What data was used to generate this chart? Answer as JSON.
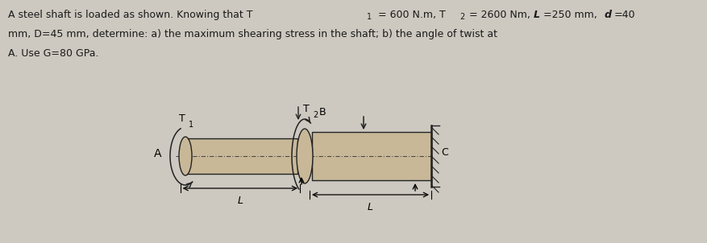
{
  "background_color": "#cdc9c0",
  "text_color": "#1a1a1a",
  "shaft_color": "#c8b898",
  "shaft_edge": "#222222",
  "centerline_color": "#444444",
  "fig_width": 8.77,
  "fig_height": 3.02,
  "dpi": 100,
  "line1_main": "A steel shaft is loaded as shown. Knowing that T",
  "line1_sub1": "1",
  "line1_mid": " = 600 N.m, T",
  "line1_sub2": "2",
  "line1_end": " = 2600 Nm, ",
  "line1_L": "L",
  "line1_eq1": "=250 mm, ",
  "line1_d": "d",
  "line1_eq2": "=40",
  "line2": "mm, D=45 mm, determine: a) the maximum shearing stress in the shaft; b) the angle of twist at",
  "line3": "A. Use G=80 GPa.",
  "label_A": "A",
  "label_B": "B",
  "label_C": "C",
  "label_T1": "T",
  "label_T1_sub": "1",
  "label_T2": "T",
  "label_T2_sub": "2",
  "label_L": "L"
}
